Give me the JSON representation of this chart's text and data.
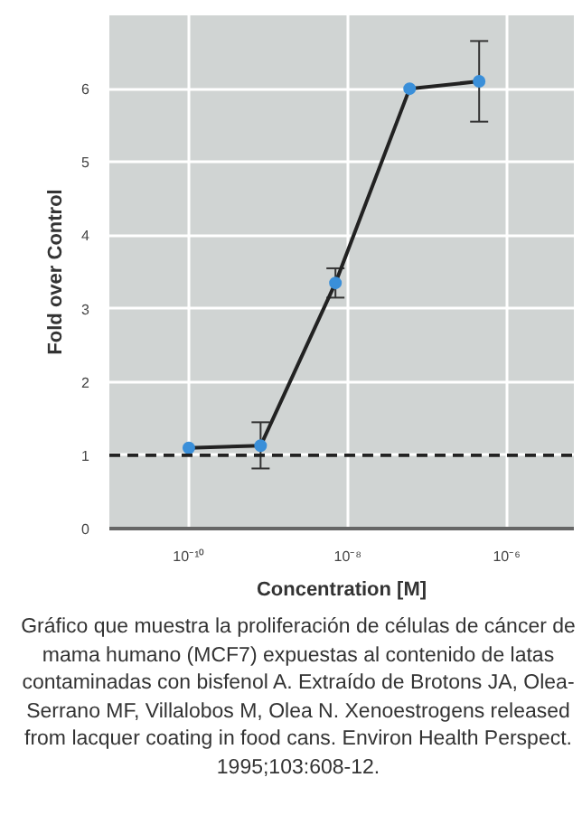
{
  "chart_data": {
    "type": "line",
    "xlabel": "Concentration [M]",
    "ylabel": "Fold over Control",
    "x": [
      1e-10,
      8e-10,
      7e-09,
      6e-08,
      4.5e-07
    ],
    "series": [
      {
        "color": "#222222",
        "values": [
          1.1,
          1.13,
          3.35,
          6.0,
          6.1
        ],
        "errors": [
          null,
          [
            0.82,
            1.45
          ],
          [
            3.15,
            3.55
          ],
          null,
          [
            5.55,
            6.65
          ]
        ]
      }
    ],
    "log": "x",
    "xlim": [
      1e-11,
      7e-06
    ],
    "xticks": [
      {
        "value": 1e-10,
        "label": "10⁻¹⁰"
      },
      {
        "value": 1e-08,
        "label": "10⁻⁸"
      },
      {
        "value": 1e-06,
        "label": "10⁻⁶"
      }
    ],
    "ylim": [
      0,
      7
    ],
    "yticks": [
      0,
      1,
      2,
      3,
      4,
      5,
      6
    ],
    "grid": true,
    "marker": "circle",
    "line_style": "solid",
    "ref_lines": [
      {
        "axis": "y",
        "value": 1,
        "label": null,
        "color": "#222222",
        "line_style": "dashed"
      }
    ],
    "annotations": [
      "Gráfico que muestra la proliferación de células de cáncer de mama humano (MCF7) expuestas al contenido de latas contaminadas con bisfenol A. Extraído de Brotons JA, Olea-Serrano MF, Villalobos M, Olea N. Xenoestrogens released from lacquer coating in food cans. Environ Health Perspect. 1995;103:608-12."
    ]
  }
}
